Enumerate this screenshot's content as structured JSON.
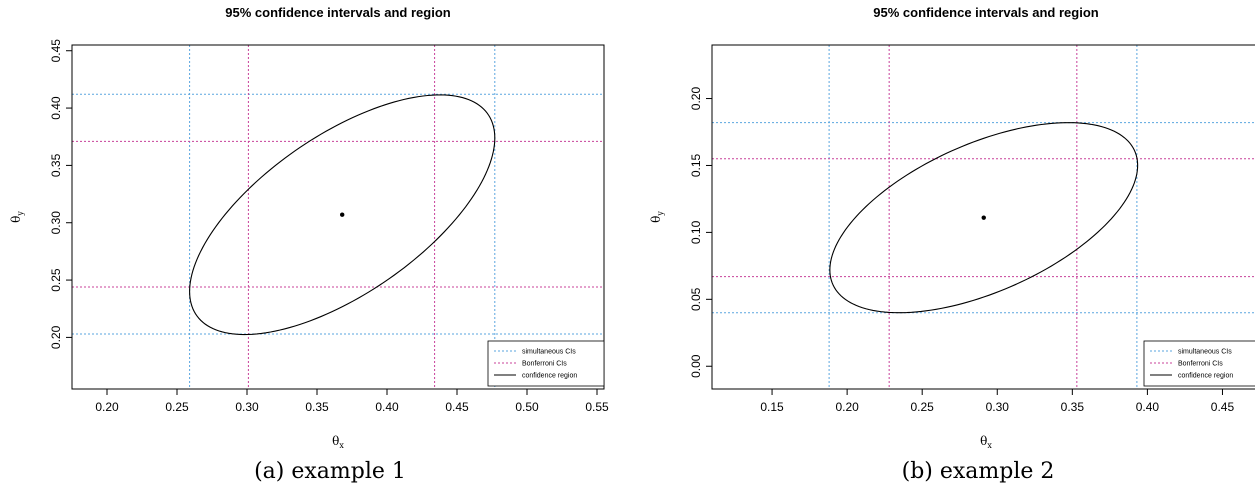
{
  "chart_data": [
    {
      "type": "scatter",
      "title": "95% confidence intervals and region",
      "caption": "(a) example 1",
      "xlabel": {
        "main": "θ",
        "sub": "x"
      },
      "ylabel": {
        "main": "θ",
        "sub": "y"
      },
      "xlim": [
        0.175,
        0.555
      ],
      "ylim": [
        0.155,
        0.455
      ],
      "xticks": [
        0.2,
        0.25,
        0.3,
        0.35,
        0.4,
        0.45,
        0.5,
        0.55
      ],
      "yticks": [
        0.2,
        0.25,
        0.3,
        0.35,
        0.4,
        0.45
      ],
      "point_estimate": {
        "x": 0.368,
        "y": 0.307
      },
      "simultaneous_cis": {
        "x": [
          0.259,
          0.477
        ],
        "y": [
          0.203,
          0.412
        ]
      },
      "bonferroni_cis": {
        "x": [
          0.301,
          0.434
        ],
        "y": [
          0.244,
          0.371
        ]
      },
      "ellipse": {
        "center": [
          0.368,
          0.307
        ],
        "rx": 0.109,
        "ry": 0.1045,
        "rho": 0.64
      },
      "legend": {
        "position": "bottom-right",
        "entries": [
          "simultaneous CIs",
          "Bonferroni CIs",
          "confidence region"
        ]
      },
      "colors": {
        "simultaneous": "#5aa6df",
        "bonferroni": "#c8409a",
        "region": "#000000"
      }
    },
    {
      "type": "scatter",
      "title": "95% confidence intervals and region",
      "caption": "(b) example 2",
      "xlabel": {
        "main": "θ",
        "sub": "x"
      },
      "ylabel": {
        "main": "θ",
        "sub": "y"
      },
      "xlim": [
        0.11,
        0.475
      ],
      "ylim": [
        -0.017,
        0.24
      ],
      "xticks": [
        0.15,
        0.2,
        0.25,
        0.3,
        0.35,
        0.4,
        0.45
      ],
      "yticks": [
        0.0,
        0.05,
        0.1,
        0.15,
        0.2
      ],
      "point_estimate": {
        "x": 0.291,
        "y": 0.111
      },
      "simultaneous_cis": {
        "x": [
          0.188,
          0.393
        ],
        "y": [
          0.04,
          0.182
        ]
      },
      "bonferroni_cis": {
        "x": [
          0.228,
          0.353
        ],
        "y": [
          0.067,
          0.155
        ]
      },
      "ellipse": {
        "center": [
          0.291,
          0.111
        ],
        "rx": 0.1025,
        "ry": 0.071,
        "rho": 0.55
      },
      "legend": {
        "position": "bottom-right",
        "entries": [
          "simultaneous CIs",
          "Bonferroni CIs",
          "confidence region"
        ]
      },
      "colors": {
        "simultaneous": "#5aa6df",
        "bonferroni": "#c8409a",
        "region": "#000000"
      }
    }
  ]
}
